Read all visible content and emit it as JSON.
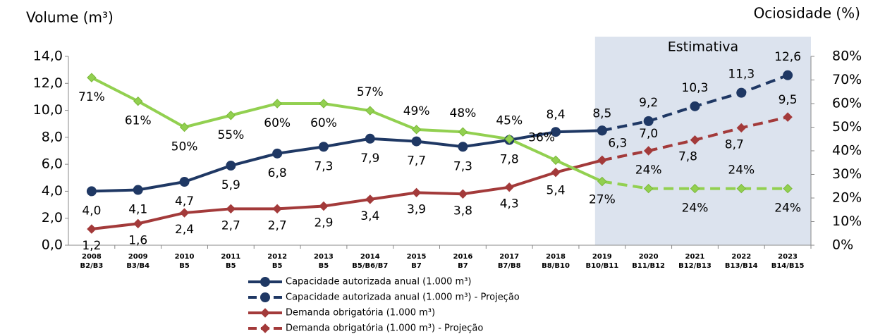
{
  "chart_data": {
    "type": "line",
    "y_title": "Volume (m³)",
    "y2_title": "Ociosidade (%)",
    "shaded_region": {
      "label": "Estimativa",
      "from": "2019"
    },
    "categories": [
      "2008",
      "2009",
      "2010",
      "2011",
      "2012",
      "2013",
      "2014",
      "2015",
      "2016",
      "2017",
      "2018",
      "2019",
      "2020",
      "2021",
      "2022",
      "2023"
    ],
    "category_sublabels": [
      "B2/B3",
      "B3/B4",
      "B5",
      "B5",
      "B5",
      "B5",
      "B5/B6/B7",
      "B7",
      "B7",
      "B7/B8",
      "B8/B10",
      "B10/B11",
      "B11/B12",
      "B12/B13",
      "B13/B14",
      "B14/B15"
    ],
    "ylim": [
      0,
      14
    ],
    "yticks": [
      {
        "value": 0,
        "label": "0,0"
      },
      {
        "value": 2,
        "label": "2,0"
      },
      {
        "value": 4,
        "label": "4,0"
      },
      {
        "value": 6,
        "label": "6,0"
      },
      {
        "value": 8,
        "label": "8,0"
      },
      {
        "value": 10,
        "label": "10,0"
      },
      {
        "value": 12,
        "label": "12,0"
      },
      {
        "value": 14,
        "label": "14,0"
      }
    ],
    "y2lim": [
      0,
      80
    ],
    "y2ticks": [
      {
        "value": 0,
        "label": "0%"
      },
      {
        "value": 10,
        "label": "10%"
      },
      {
        "value": 20,
        "label": "20%"
      },
      {
        "value": 30,
        "label": "30%"
      },
      {
        "value": 40,
        "label": "40%"
      },
      {
        "value": 50,
        "label": "50%"
      },
      {
        "value": 60,
        "label": "60%"
      },
      {
        "value": 70,
        "label": "70%"
      },
      {
        "value": 80,
        "label": "80%"
      }
    ],
    "series": [
      {
        "name": "Capacidade autorizada anual (1.000 m³)",
        "color": "#1f3864",
        "marker": "circle",
        "dashed": false,
        "values": [
          4.0,
          4.1,
          4.7,
          5.9,
          6.8,
          7.3,
          7.9,
          7.7,
          7.3,
          7.8,
          8.4,
          8.5,
          null,
          null,
          null,
          null
        ],
        "value_labels": [
          "4,0",
          "4,1",
          "4,7",
          "5,9",
          "6,8",
          "7,3",
          "7,9",
          "7,7",
          "7,3",
          "7,8",
          "8,4",
          "8,5",
          null,
          null,
          null,
          null
        ]
      },
      {
        "name": "Capacidade autorizada anual (1.000 m³) - Projeção",
        "color": "#1f3864",
        "marker": "circle",
        "dashed": true,
        "values": [
          null,
          null,
          null,
          null,
          null,
          null,
          null,
          null,
          null,
          null,
          null,
          8.5,
          9.2,
          10.3,
          11.3,
          12.6
        ],
        "value_labels": [
          null,
          null,
          null,
          null,
          null,
          null,
          null,
          null,
          null,
          null,
          null,
          null,
          "9,2",
          "10,3",
          "11,3",
          "12,6"
        ]
      },
      {
        "name": "Demanda obrigatória (1.000 m³)",
        "color": "#a33a3a",
        "marker": "diamond",
        "dashed": false,
        "values": [
          1.2,
          1.6,
          2.4,
          2.7,
          2.7,
          2.9,
          3.4,
          3.9,
          3.8,
          4.3,
          5.4,
          6.3,
          null,
          null,
          null,
          null
        ],
        "value_labels": [
          "1,2",
          "1,6",
          "2,4",
          "2,7",
          "2,7",
          "2,9",
          "3,4",
          "3,9",
          "3,8",
          "4,3",
          "5,4",
          "6,3",
          null,
          null,
          null,
          null
        ]
      },
      {
        "name": "Demanda obrigatória (1.000 m³) - Projeção",
        "color": "#a33a3a",
        "marker": "diamond",
        "dashed": true,
        "values": [
          null,
          null,
          null,
          null,
          null,
          null,
          null,
          null,
          null,
          null,
          null,
          6.3,
          7.0,
          7.8,
          8.7,
          9.5
        ],
        "value_labels": [
          null,
          null,
          null,
          null,
          null,
          null,
          null,
          null,
          null,
          null,
          null,
          null,
          "7,0",
          "7,8",
          "8,7",
          "9,5"
        ]
      },
      {
        "color": "#92d050",
        "marker": "diamond",
        "dashed": false,
        "axis": "y2",
        "values": [
          71,
          61,
          50,
          55,
          60,
          60,
          57,
          49,
          48,
          45,
          36,
          27,
          null,
          null,
          null,
          null
        ],
        "value_labels": [
          "71%",
          "61%",
          "50%",
          "55%",
          "60%",
          "60%",
          "57%",
          "49%",
          "48%",
          "45%",
          "36%",
          "27%",
          null,
          null,
          null,
          null
        ]
      },
      {
        "color": "#92d050",
        "marker": "diamond",
        "dashed": true,
        "axis": "y2",
        "values": [
          null,
          null,
          null,
          null,
          null,
          null,
          null,
          null,
          null,
          null,
          null,
          27,
          24,
          24,
          24,
          24
        ],
        "value_labels": [
          null,
          null,
          null,
          null,
          null,
          null,
          null,
          null,
          null,
          null,
          null,
          null,
          "24%",
          "24%",
          "24%",
          "24%"
        ]
      }
    ]
  }
}
